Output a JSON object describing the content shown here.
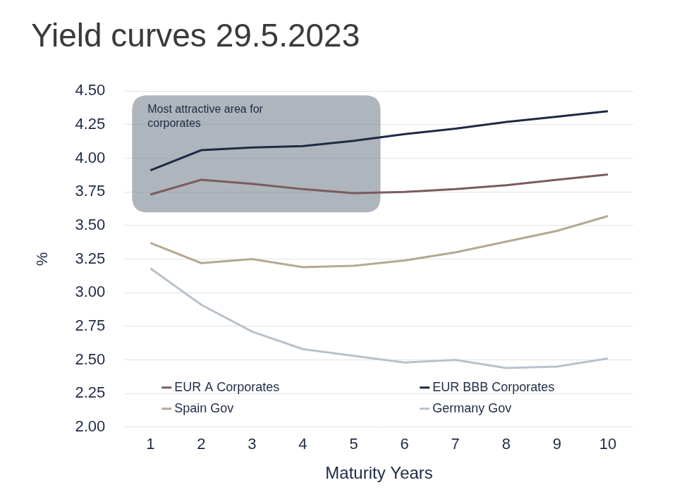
{
  "chart_data": {
    "type": "line",
    "title": "Yield curves 29.5.2023",
    "x_label": "Maturity Years",
    "y_label": "%",
    "categories": [
      "1",
      "2",
      "3",
      "4",
      "5",
      "6",
      "7",
      "8",
      "9",
      "10"
    ],
    "series": [
      {
        "name": "EUR A Corporates",
        "color": "#7a5c5e",
        "values": [
          3.73,
          3.84,
          3.81,
          3.77,
          3.74,
          3.75,
          3.77,
          3.8,
          3.84,
          3.88
        ]
      },
      {
        "name": "EUR BBB Corporates",
        "color": "#1e2a44",
        "values": [
          3.91,
          4.06,
          4.08,
          4.09,
          4.13,
          4.18,
          4.22,
          4.27,
          4.31,
          4.35
        ]
      },
      {
        "name": "Spain Gov",
        "color": "#b5a892",
        "values": [
          3.37,
          3.22,
          3.25,
          3.19,
          3.2,
          3.24,
          3.3,
          3.38,
          3.46,
          3.57
        ]
      },
      {
        "name": "Germany Gov",
        "color": "#b8c2cc",
        "values": [
          3.18,
          2.91,
          2.71,
          2.58,
          2.53,
          2.48,
          2.5,
          2.44,
          2.45,
          2.51
        ]
      }
    ],
    "ylim": [
      2,
      4.5
    ],
    "yticks": [
      {
        "value": 2,
        "label": "2.00"
      },
      {
        "value": 2.25,
        "label": "2.25"
      },
      {
        "value": 2.5,
        "label": "2.50"
      },
      {
        "value": 2.75,
        "label": "2.75"
      },
      {
        "value": 3,
        "label": "3.00"
      },
      {
        "value": 3.25,
        "label": "3.25"
      },
      {
        "value": 3.5,
        "label": "3.50"
      },
      {
        "value": 3.75,
        "label": "3.75"
      },
      {
        "value": 4,
        "label": "4.00"
      },
      {
        "value": 4.25,
        "label": "4.25"
      },
      {
        "value": 4.5,
        "label": "4.50"
      }
    ],
    "grid": true,
    "legend": "bottom",
    "annotations": [
      {
        "text": "Most attractive area for corporates",
        "from": "1",
        "to": "5"
      }
    ]
  }
}
